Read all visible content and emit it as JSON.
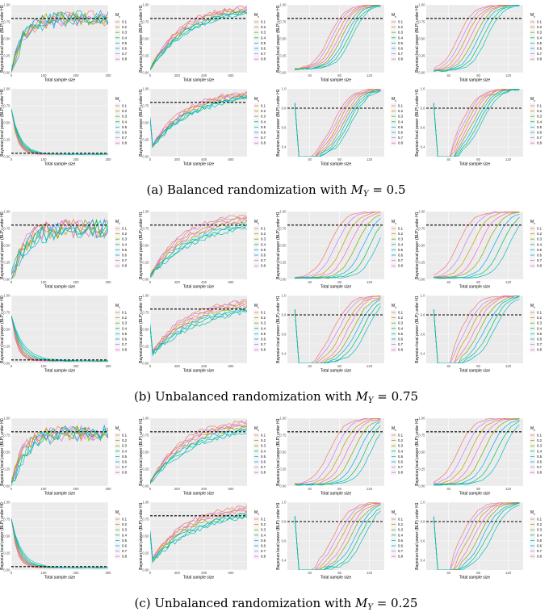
{
  "colors": [
    "#F8766D",
    "#CD9600",
    "#7CAE00",
    "#00BE67",
    "#00BFC4",
    "#00A9FF",
    "#C77CFF",
    "#FF61CC"
  ],
  "common": {
    "xlabel": "Total sample size",
    "legend_title": "M",
    "legend_subscript": "x",
    "legend_labels": [
      "0.1",
      "0.2",
      "0.3",
      "0.4",
      "0.5",
      "0.6",
      "0.7",
      "0.8"
    ],
    "threshold_note": "dashed line = target power"
  },
  "captions": [
    {
      "label": "(a)",
      "text": "Balanced randomization with",
      "math_var": "M",
      "math_sub": "Y",
      "math_rest": " = 0.5"
    },
    {
      "label": "(b)",
      "text": "Unbalanced randomization with",
      "math_var": "M",
      "math_sub": "Y",
      "math_rest": " = 0.75"
    },
    {
      "label": "(c)",
      "text": "Unbalanced randomization with",
      "math_var": "M",
      "math_sub": "Y",
      "math_rest": " = 0.25"
    }
  ],
  "chart_data": [
    {
      "group": "a",
      "row": 1,
      "col": 1,
      "type": "line",
      "ylabel": "Bayesian local power (BLP) under H0",
      "xlim": [
        0,
        300
      ],
      "ylim": [
        0,
        1
      ],
      "xticks": [
        0,
        100,
        200,
        300
      ],
      "yticks": [
        0,
        0.25,
        0.5,
        0.75,
        1
      ],
      "ytick_labels": [
        "0.00",
        "0.25",
        "0.50",
        "0.75",
        "1.00"
      ],
      "threshold": 0.8,
      "pattern": "noisy_rise",
      "start": 0.0,
      "end": 0.8,
      "spread": 0.18,
      "noise": 0.12,
      "n_points": 26
    },
    {
      "group": "a",
      "row": 1,
      "col": 2,
      "type": "line",
      "ylabel": "Bayesian local power (BLP) under H1",
      "xlim": [
        0,
        720
      ],
      "ylim": [
        0,
        1
      ],
      "xticks": [
        0,
        200,
        400,
        600
      ],
      "yticks": [
        0,
        0.25,
        0.5,
        0.75,
        1
      ],
      "ytick_labels": [
        "0.00",
        "0.25",
        "0.50",
        "0.75",
        "1.00"
      ],
      "threshold": 0.8,
      "pattern": "concave",
      "start": 0.05,
      "end": 0.97,
      "spread": 0.3,
      "noise": 0.03,
      "n_points": 40
    },
    {
      "group": "a",
      "row": 1,
      "col": 3,
      "type": "line",
      "ylabel": "Bayesian local power (BLP) under H1",
      "xlim": [
        10,
        140
      ],
      "ylim": [
        0,
        1
      ],
      "xticks": [
        40,
        80,
        120
      ],
      "yticks": [
        0,
        0.25,
        0.5,
        0.75,
        1
      ],
      "ytick_labels": [
        "0.00",
        "0.25",
        "0.50",
        "0.75",
        "1.00"
      ],
      "threshold": 0.8,
      "pattern": "sigmoid",
      "start": 0.05,
      "end": 1.0,
      "spread": 0.35,
      "noise": 0.01,
      "n_points": 22
    },
    {
      "group": "a",
      "row": 1,
      "col": 4,
      "type": "line",
      "ylabel": "Bayesian local power (BLP) under H1",
      "xlim": [
        10,
        140
      ],
      "ylim": [
        0,
        1
      ],
      "xticks": [
        40,
        80,
        120
      ],
      "yticks": [
        0,
        0.25,
        0.5,
        0.75,
        1
      ],
      "ytick_labels": [
        "0.00",
        "0.25",
        "0.50",
        "0.75",
        "1.00"
      ],
      "threshold": 0.8,
      "pattern": "sigmoid_fast",
      "start": 0.02,
      "end": 1.0,
      "spread": 0.45,
      "noise": 0.01,
      "n_points": 22
    },
    {
      "group": "a",
      "row": 2,
      "col": 1,
      "type": "line",
      "ylabel": "Bayesian local power (BLP) under H0",
      "xlim": [
        0,
        300
      ],
      "ylim": [
        0,
        1
      ],
      "xticks": [
        0,
        100,
        200,
        300
      ],
      "yticks": [
        0,
        0.25,
        0.5,
        0.75,
        1
      ],
      "ytick_labels": [
        "0.00",
        "0.25",
        "0.50",
        "0.75",
        "1.00"
      ],
      "threshold": 0.05,
      "pattern": "decay",
      "start": 0.7,
      "end": 0.03,
      "spread": 0.5,
      "noise": 0.01,
      "n_points": 26
    },
    {
      "group": "a",
      "row": 2,
      "col": 2,
      "type": "line",
      "ylabel": "Bayesian local power (BLP) under H1",
      "xlim": [
        0,
        720
      ],
      "ylim": [
        0,
        1
      ],
      "xticks": [
        0,
        200,
        400,
        600
      ],
      "yticks": [
        0,
        0.25,
        0.5,
        0.75,
        1
      ],
      "ytick_labels": [
        "0.00",
        "0.25",
        "0.50",
        "0.75",
        "1.00"
      ],
      "threshold": 0.8,
      "pattern": "dip_concave",
      "start": 0.1,
      "end": 0.95,
      "spread": 0.3,
      "noise": 0.03,
      "n_points": 40
    },
    {
      "group": "a",
      "row": 2,
      "col": 3,
      "type": "line",
      "ylabel": "Bayesian local power (BLP) under H1",
      "xlim": [
        10,
        140
      ],
      "ylim": [
        0.3,
        1
      ],
      "xticks": [
        40,
        80,
        120
      ],
      "yticks": [
        0.4,
        0.6,
        0.8,
        1.0
      ],
      "ytick_labels": [
        "0.4",
        "0.6",
        "0.8",
        "1.0"
      ],
      "threshold": 0.8,
      "pattern": "dip_rise",
      "start": 0.3,
      "end": 1.0,
      "spread": 0.35,
      "noise": 0.01,
      "n_points": 22
    },
    {
      "group": "a",
      "row": 2,
      "col": 4,
      "type": "line",
      "ylabel": "Bayesian local power (BLP) under H1",
      "xlim": [
        10,
        140
      ],
      "ylim": [
        0.3,
        1
      ],
      "xticks": [
        40,
        80,
        120
      ],
      "yticks": [
        0.4,
        0.6,
        0.8,
        1.0
      ],
      "ytick_labels": [
        "0.4",
        "0.6",
        "0.8",
        "1.0"
      ],
      "threshold": 0.8,
      "pattern": "dip_rise_fast",
      "start": 0.3,
      "end": 1.0,
      "spread": 0.4,
      "noise": 0.01,
      "n_points": 22
    },
    {
      "group": "b",
      "row": 1,
      "col": 1,
      "type": "line",
      "ylabel": "Bayesian local power (BLP) under H0",
      "xlim": [
        0,
        300
      ],
      "ylim": [
        0,
        1
      ],
      "xticks": [
        0,
        100,
        200,
        300
      ],
      "yticks": [
        0,
        0.25,
        0.5,
        0.75,
        1
      ],
      "ytick_labels": [
        "0.00",
        "0.25",
        "0.50",
        "0.75",
        "1.00"
      ],
      "threshold": 0.8,
      "pattern": "noisy_rise",
      "start": 0.0,
      "end": 0.75,
      "spread": 0.35,
      "noise": 0.14,
      "n_points": 26
    },
    {
      "group": "b",
      "row": 1,
      "col": 2,
      "type": "line",
      "ylabel": "Bayesian local power (BLP) under H1",
      "xlim": [
        0,
        720
      ],
      "ylim": [
        0,
        1
      ],
      "xticks": [
        0,
        200,
        400,
        600
      ],
      "yticks": [
        0,
        0.25,
        0.5,
        0.75,
        1
      ],
      "ytick_labels": [
        "0.00",
        "0.25",
        "0.50",
        "0.75",
        "1.00"
      ],
      "threshold": 0.8,
      "pattern": "concave",
      "start": 0.05,
      "end": 0.95,
      "spread": 0.55,
      "noise": 0.03,
      "n_points": 40
    },
    {
      "group": "b",
      "row": 1,
      "col": 3,
      "type": "line",
      "ylabel": "Bayesian local power (BLP) under H1",
      "xlim": [
        10,
        140
      ],
      "ylim": [
        0,
        1
      ],
      "xticks": [
        40,
        80,
        120
      ],
      "yticks": [
        0,
        0.25,
        0.5,
        0.75,
        1
      ],
      "ytick_labels": [
        "0.00",
        "0.25",
        "0.50",
        "0.75",
        "1.00"
      ],
      "threshold": 0.8,
      "pattern": "sigmoid",
      "start": 0.02,
      "end": 1.0,
      "spread": 0.75,
      "noise": 0.01,
      "n_points": 22
    },
    {
      "group": "b",
      "row": 1,
      "col": 4,
      "type": "line",
      "ylabel": "Bayesian local power (BLP) under H1",
      "xlim": [
        10,
        140
      ],
      "ylim": [
        0,
        1
      ],
      "xticks": [
        40,
        80,
        120
      ],
      "yticks": [
        0,
        0.25,
        0.5,
        0.75,
        1
      ],
      "ytick_labels": [
        "0.00",
        "0.25",
        "0.50",
        "0.75",
        "1.00"
      ],
      "threshold": 0.8,
      "pattern": "sigmoid_fast",
      "start": 0.02,
      "end": 1.0,
      "spread": 0.8,
      "noise": 0.01,
      "n_points": 22
    },
    {
      "group": "b",
      "row": 2,
      "col": 1,
      "type": "line",
      "ylabel": "Bayesian local power (BLP) under H0",
      "xlim": [
        0,
        300
      ],
      "ylim": [
        0,
        1
      ],
      "xticks": [
        0,
        100,
        200,
        300
      ],
      "yticks": [
        0,
        0.25,
        0.5,
        0.75,
        1
      ],
      "ytick_labels": [
        "0.00",
        "0.25",
        "0.50",
        "0.75",
        "1.00"
      ],
      "threshold": 0.05,
      "pattern": "decay",
      "start": 0.7,
      "end": 0.03,
      "spread": 0.7,
      "noise": 0.01,
      "n_points": 26
    },
    {
      "group": "b",
      "row": 2,
      "col": 2,
      "type": "line",
      "ylabel": "Bayesian local power (BLP) under H1",
      "xlim": [
        0,
        720
      ],
      "ylim": [
        0,
        1
      ],
      "xticks": [
        0,
        200,
        400,
        600
      ],
      "yticks": [
        0,
        0.25,
        0.5,
        0.75,
        1
      ],
      "ytick_labels": [
        "0.00",
        "0.25",
        "0.50",
        "0.75",
        "1.00"
      ],
      "threshold": 0.8,
      "pattern": "dip_concave",
      "start": 0.1,
      "end": 0.92,
      "spread": 0.5,
      "noise": 0.03,
      "n_points": 40
    },
    {
      "group": "b",
      "row": 2,
      "col": 3,
      "type": "line",
      "ylabel": "Bayesian local power (BLP) under H1",
      "xlim": [
        10,
        140
      ],
      "ylim": [
        0.3,
        1
      ],
      "xticks": [
        40,
        80,
        120
      ],
      "yticks": [
        0.4,
        0.6,
        0.8,
        1.0
      ],
      "ytick_labels": [
        "0.4",
        "0.6",
        "0.8",
        "1.0"
      ],
      "threshold": 0.8,
      "pattern": "dip_rise",
      "start": 0.3,
      "end": 1.0,
      "spread": 0.65,
      "noise": 0.01,
      "n_points": 22
    },
    {
      "group": "b",
      "row": 2,
      "col": 4,
      "type": "line",
      "ylabel": "Bayesian local power (BLP) under H1",
      "xlim": [
        10,
        140
      ],
      "ylim": [
        0.3,
        1
      ],
      "xticks": [
        40,
        80,
        120
      ],
      "yticks": [
        0.4,
        0.6,
        0.8,
        1.0
      ],
      "ytick_labels": [
        "0.4",
        "0.6",
        "0.8",
        "1.0"
      ],
      "threshold": 0.8,
      "pattern": "dip_rise_fast",
      "start": 0.3,
      "end": 1.0,
      "spread": 0.65,
      "noise": 0.01,
      "n_points": 22
    },
    {
      "group": "c",
      "row": 1,
      "col": 1,
      "type": "line",
      "ylabel": "Bayesian local power (BLP) under H0",
      "xlim": [
        0,
        300
      ],
      "ylim": [
        0,
        1
      ],
      "xticks": [
        0,
        100,
        200,
        300
      ],
      "yticks": [
        0,
        0.25,
        0.5,
        0.75,
        1
      ],
      "ytick_labels": [
        "0.00",
        "0.25",
        "0.50",
        "0.75",
        "1.00"
      ],
      "threshold": 0.8,
      "pattern": "noisy_rise",
      "start": 0.0,
      "end": 0.78,
      "spread": 0.3,
      "noise": 0.12,
      "n_points": 26
    },
    {
      "group": "c",
      "row": 1,
      "col": 2,
      "type": "line",
      "ylabel": "Bayesian local power (BLP) under H1",
      "xlim": [
        0,
        720
      ],
      "ylim": [
        0,
        1
      ],
      "xticks": [
        0,
        200,
        400,
        600
      ],
      "yticks": [
        0,
        0.25,
        0.5,
        0.75,
        1
      ],
      "ytick_labels": [
        "0.00",
        "0.25",
        "0.50",
        "0.75",
        "1.00"
      ],
      "threshold": 0.8,
      "pattern": "concave",
      "start": 0.05,
      "end": 0.95,
      "spread": 0.45,
      "noise": 0.03,
      "n_points": 40
    },
    {
      "group": "c",
      "row": 1,
      "col": 3,
      "type": "line",
      "ylabel": "Bayesian local power (BLP) under H1",
      "xlim": [
        10,
        140
      ],
      "ylim": [
        0,
        1
      ],
      "xticks": [
        40,
        80,
        120
      ],
      "yticks": [
        0,
        0.25,
        0.5,
        0.75,
        1
      ],
      "ytick_labels": [
        "0.00",
        "0.25",
        "0.50",
        "0.75",
        "1.00"
      ],
      "threshold": 0.8,
      "pattern": "sigmoid",
      "start": 0.02,
      "end": 1.0,
      "spread": 0.65,
      "noise": 0.01,
      "n_points": 22
    },
    {
      "group": "c",
      "row": 1,
      "col": 4,
      "type": "line",
      "ylabel": "Bayesian local power (BLP) under H1",
      "xlim": [
        10,
        140
      ],
      "ylim": [
        0,
        1
      ],
      "xticks": [
        40,
        80,
        120
      ],
      "yticks": [
        0,
        0.25,
        0.5,
        0.75,
        1
      ],
      "ytick_labels": [
        "0.00",
        "0.25",
        "0.50",
        "0.75",
        "1.00"
      ],
      "threshold": 0.8,
      "pattern": "sigmoid_fast",
      "start": 0.02,
      "end": 1.0,
      "spread": 0.7,
      "noise": 0.01,
      "n_points": 22
    },
    {
      "group": "c",
      "row": 2,
      "col": 1,
      "type": "line",
      "ylabel": "Bayesian local power (BLP) under H0",
      "xlim": [
        0,
        300
      ],
      "ylim": [
        0,
        1
      ],
      "xticks": [
        0,
        100,
        200,
        300
      ],
      "yticks": [
        0,
        0.25,
        0.5,
        0.75,
        1
      ],
      "ytick_labels": [
        "0.00",
        "0.25",
        "0.50",
        "0.75",
        "1.00"
      ],
      "threshold": 0.05,
      "pattern": "decay",
      "start": 0.75,
      "end": 0.03,
      "spread": 0.6,
      "noise": 0.01,
      "n_points": 26
    },
    {
      "group": "c",
      "row": 2,
      "col": 2,
      "type": "line",
      "ylabel": "Bayesian local power (BLP) under H1",
      "xlim": [
        0,
        720
      ],
      "ylim": [
        0,
        1
      ],
      "xticks": [
        0,
        200,
        400,
        600
      ],
      "yticks": [
        0,
        0.25,
        0.5,
        0.75,
        1
      ],
      "ytick_labels": [
        "0.00",
        "0.25",
        "0.50",
        "0.75",
        "1.00"
      ],
      "threshold": 0.8,
      "pattern": "dip_concave",
      "start": 0.1,
      "end": 0.93,
      "spread": 0.45,
      "noise": 0.03,
      "n_points": 40
    },
    {
      "group": "c",
      "row": 2,
      "col": 3,
      "type": "line",
      "ylabel": "Bayesian local power (BLP) under H1",
      "xlim": [
        10,
        140
      ],
      "ylim": [
        0.3,
        1
      ],
      "xticks": [
        40,
        80,
        120
      ],
      "yticks": [
        0.4,
        0.6,
        0.8,
        1.0
      ],
      "ytick_labels": [
        "0.4",
        "0.6",
        "0.8",
        "1.0"
      ],
      "threshold": 0.8,
      "pattern": "dip_rise",
      "start": 0.3,
      "end": 1.0,
      "spread": 0.6,
      "noise": 0.01,
      "n_points": 22
    },
    {
      "group": "c",
      "row": 2,
      "col": 4,
      "type": "line",
      "ylabel": "Bayesian local power (BLP) under H1",
      "xlim": [
        10,
        140
      ],
      "ylim": [
        0.3,
        1
      ],
      "xticks": [
        40,
        80,
        120
      ],
      "yticks": [
        0.4,
        0.6,
        0.8,
        1.0
      ],
      "ytick_labels": [
        "0.4",
        "0.6",
        "0.8",
        "1.0"
      ],
      "threshold": 0.8,
      "pattern": "dip_rise_fast",
      "start": 0.3,
      "end": 1.0,
      "spread": 0.6,
      "noise": 0.01,
      "n_points": 22
    }
  ]
}
